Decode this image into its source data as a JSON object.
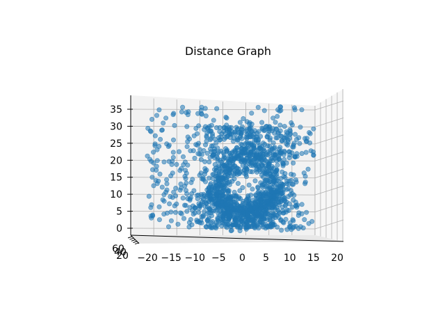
{
  "chart_data": {
    "type": "scatter",
    "title": "Distance Graph",
    "xlim": [
      -22,
      22
    ],
    "zlim": [
      -2,
      38
    ],
    "x_ticks": [
      "−20",
      "−15",
      "−10",
      "−5",
      "0",
      "5",
      "10",
      "15",
      "20"
    ],
    "z_ticks": [
      "0",
      "5",
      "10",
      "15",
      "20",
      "25",
      "30",
      "35"
    ],
    "y_ticks_crowded": [
      "60",
      "40",
      "20"
    ],
    "grid": true,
    "series": [
      {
        "color": "#1f77b4",
        "description_points": "approximately 2000 scattered 3D points; dense ring-shaped cluster near x in [-7, 8], z in [0, 25]; sparser points spread over x in [-20, 14], z in [-1, 36]"
      }
    ]
  },
  "colors": {
    "marker": "#1f77b4",
    "pane": "#f2f2f2",
    "grid": "#b0b0b0"
  }
}
